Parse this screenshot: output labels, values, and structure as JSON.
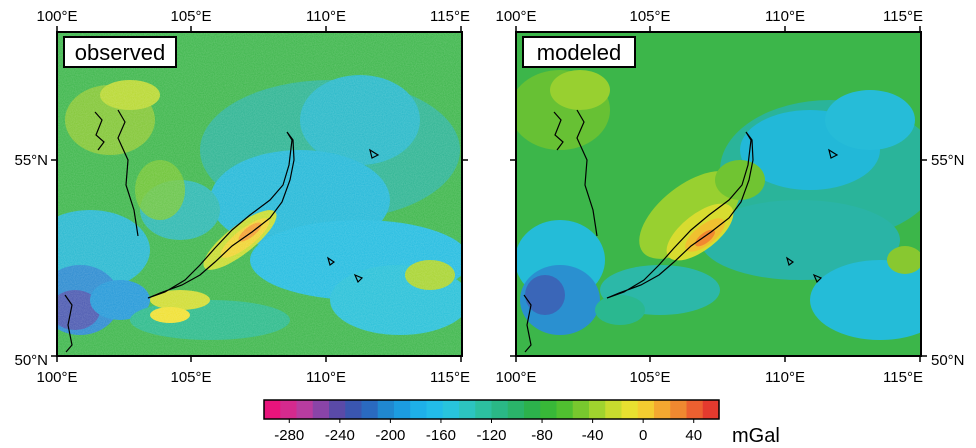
{
  "panels": [
    {
      "label": "observed",
      "x_ticks": [
        "100°E",
        "105°E",
        "110°E",
        "115°E"
      ],
      "y_ticks_left": [
        "55°N",
        "50°N"
      ],
      "y_ticks_right": []
    },
    {
      "label": "modeled",
      "x_ticks": [
        "100°E",
        "105°E",
        "110°E",
        "115°E"
      ],
      "y_ticks_left": [],
      "y_ticks_right": [
        "55°N",
        "50°N"
      ]
    }
  ],
  "colorbar": {
    "ticks": [
      "-280",
      "-240",
      "-200",
      "-160",
      "-120",
      "-80",
      "-40",
      "0",
      "40"
    ],
    "unit": "mGal",
    "colors": [
      "#e8147c",
      "#d42a8e",
      "#b83ca0",
      "#8a44a8",
      "#5a4aa8",
      "#3a56b0",
      "#2a6ac0",
      "#2088d0",
      "#1c9ce0",
      "#1eb0e8",
      "#22bce8",
      "#28c4dc",
      "#2cc4c0",
      "#2cc0a0",
      "#2ab886",
      "#2ab46a",
      "#2cb24c",
      "#38b838",
      "#50c030",
      "#78c82e",
      "#a0d42e",
      "#c8dc2e",
      "#e8e030",
      "#f4cc30",
      "#f4a830",
      "#f08830",
      "#ec6030",
      "#e43a2e"
    ]
  }
}
